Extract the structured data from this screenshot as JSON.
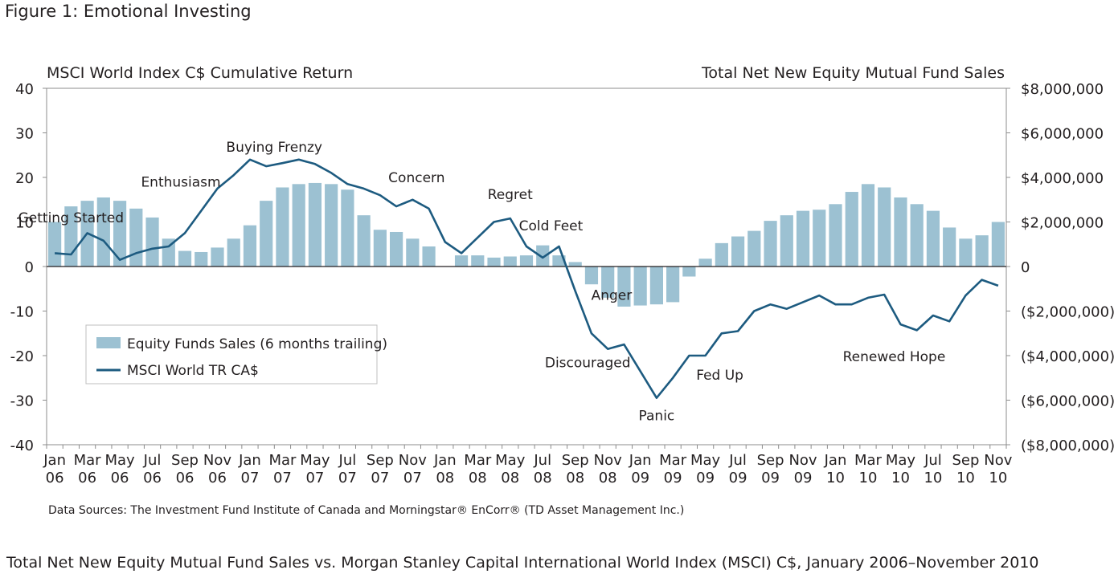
{
  "figure_title": "Figure 1: Emotional Investing",
  "caption": "Total Net New Equity Mutual Fund Sales vs. Morgan Stanley Capital International World Index (MSCI) C$, January 2006–November 2010",
  "source_note": "Data Sources: The Investment Fund Institute of Canada and Morningstar® EnCorr® (TD Asset Management Inc.)",
  "chart_data": {
    "type": "bar+line",
    "title": "",
    "left_axis_title": "MSCI World Index C$ Cumulative Return",
    "right_axis_title": "Total Net New Equity Mutual Fund Sales",
    "left_axis": {
      "range": [
        -40,
        40
      ],
      "ticks": [
        40,
        30,
        20,
        10,
        0,
        -10,
        -20,
        -30,
        -40
      ],
      "tick_labels": [
        "40",
        "30",
        "20",
        "10",
        "0",
        "-10",
        "-20",
        "-30",
        "-40"
      ]
    },
    "right_axis": {
      "range": [
        -8000000,
        8000000
      ],
      "ticks": [
        8000000,
        6000000,
        4000000,
        2000000,
        0,
        -2000000,
        -4000000,
        -6000000,
        -8000000
      ],
      "tick_labels": [
        "$8,000,000",
        "$6,000,000",
        "$4,000,000",
        "$2,000,000",
        "0",
        "($2,000,000)",
        "($4,000,000)",
        "($6,000,000)",
        "($8,000,000)"
      ]
    },
    "x_tick_labels": [
      [
        "Jan",
        "06"
      ],
      [
        "Mar",
        "06"
      ],
      [
        "May",
        "06"
      ],
      [
        "Jul",
        "06"
      ],
      [
        "Sep",
        "06"
      ],
      [
        "Nov",
        "06"
      ],
      [
        "Jan",
        "07"
      ],
      [
        "Mar",
        "07"
      ],
      [
        "May",
        "07"
      ],
      [
        "Jul",
        "07"
      ],
      [
        "Sep",
        "07"
      ],
      [
        "Nov",
        "07"
      ],
      [
        "Jan",
        "08"
      ],
      [
        "Mar",
        "08"
      ],
      [
        "May",
        "08"
      ],
      [
        "Jul",
        "08"
      ],
      [
        "Sep",
        "08"
      ],
      [
        "Nov",
        "08"
      ],
      [
        "Jan",
        "09"
      ],
      [
        "Mar",
        "09"
      ],
      [
        "May",
        "09"
      ],
      [
        "Jul",
        "09"
      ],
      [
        "Sep",
        "09"
      ],
      [
        "Nov",
        "09"
      ],
      [
        "Jan",
        "10"
      ],
      [
        "Mar",
        "10"
      ],
      [
        "May",
        "10"
      ],
      [
        "Jul",
        "10"
      ],
      [
        "Sep",
        "10"
      ],
      [
        "Nov",
        "10"
      ]
    ],
    "months": [
      "Jan 06",
      "Feb 06",
      "Mar 06",
      "Apr 06",
      "May 06",
      "Jun 06",
      "Jul 06",
      "Aug 06",
      "Sep 06",
      "Oct 06",
      "Nov 06",
      "Dec 06",
      "Jan 07",
      "Feb 07",
      "Mar 07",
      "Apr 07",
      "May 07",
      "Jun 07",
      "Jul 07",
      "Aug 07",
      "Sep 07",
      "Oct 07",
      "Nov 07",
      "Dec 07",
      "Jan 08",
      "Feb 08",
      "Mar 08",
      "Apr 08",
      "May 08",
      "Jun 08",
      "Jul 08",
      "Aug 08",
      "Sep 08",
      "Oct 08",
      "Nov 08",
      "Dec 08",
      "Jan 09",
      "Feb 09",
      "Mar 09",
      "Apr 09",
      "May 09",
      "Jun 09",
      "Jul 09",
      "Aug 09",
      "Sep 09",
      "Oct 09",
      "Nov 09",
      "Dec 09",
      "Jan 10",
      "Feb 10",
      "Mar 10",
      "Apr 10",
      "May 10",
      "Jun 10",
      "Jul 10",
      "Aug 10",
      "Sep 10",
      "Oct 10",
      "Nov 10"
    ],
    "series": [
      {
        "name": "Equity Funds Sales (6 months trailing)",
        "type": "bar",
        "axis": "right",
        "color": "#9cc1d2",
        "values": [
          2000000,
          2700000,
          2950000,
          3100000,
          2950000,
          2600000,
          2200000,
          1250000,
          700000,
          650000,
          850000,
          1250000,
          1850000,
          2950000,
          3550000,
          3700000,
          3750000,
          3700000,
          3450000,
          2300000,
          1650000,
          1550000,
          1250000,
          900000,
          0,
          500000,
          500000,
          400000,
          450000,
          500000,
          950000,
          500000,
          200000,
          -800000,
          -1400000,
          -1800000,
          -1750000,
          -1700000,
          -1600000,
          -450000,
          350000,
          1050000,
          1350000,
          1600000,
          2050000,
          2300000,
          2500000,
          2550000,
          2800000,
          3350000,
          3700000,
          3550000,
          3100000,
          2800000,
          2500000,
          1750000,
          1250000,
          1400000,
          2000000
        ]
      },
      {
        "name": "MSCI World TR CA$",
        "type": "line",
        "axis": "left",
        "color": "#1d5b80",
        "values": [
          3,
          2.7,
          7.5,
          5.8,
          1.5,
          3,
          4,
          4.5,
          7.5,
          12.5,
          17.5,
          20.5,
          24,
          22.5,
          23.2,
          24,
          23,
          21,
          18.5,
          17.5,
          16,
          13.5,
          15,
          13,
          5.5,
          3,
          6.5,
          10,
          10.8,
          4.5,
          2,
          4.5,
          -5.5,
          -15,
          -18.5,
          -17.5,
          -23.5,
          -29.5,
          -25,
          -20,
          -20,
          -15,
          -14.5,
          -10,
          -8.5,
          -9.5,
          -8,
          -6.5,
          -8.5,
          -8.5,
          -7,
          -6.3,
          -13,
          -14.3,
          -11,
          -12.3,
          -6.5,
          -3,
          -4.3
        ]
      }
    ],
    "annotations": [
      {
        "text": "Getting Started",
        "month": 1
      },
      {
        "text": "Enthusiasm",
        "month": 8
      },
      {
        "text": "Buying Frenzy",
        "month": 13
      },
      {
        "text": "Concern",
        "month": 22
      },
      {
        "text": "Regret",
        "month": 28
      },
      {
        "text": "Anger",
        "month": 33
      },
      {
        "text": "Cold Feet",
        "month": 31
      },
      {
        "text": "Discouraged",
        "month": 34
      },
      {
        "text": "Panic",
        "month": 37
      },
      {
        "text": "Fed Up",
        "month": 40
      },
      {
        "text": "Renewed Hope",
        "month": 52
      }
    ],
    "legend": {
      "placement": "lower-left",
      "entries": [
        "Equity Funds Sales (6 months trailing)",
        "MSCI World TR CA$"
      ]
    },
    "grid": false
  }
}
